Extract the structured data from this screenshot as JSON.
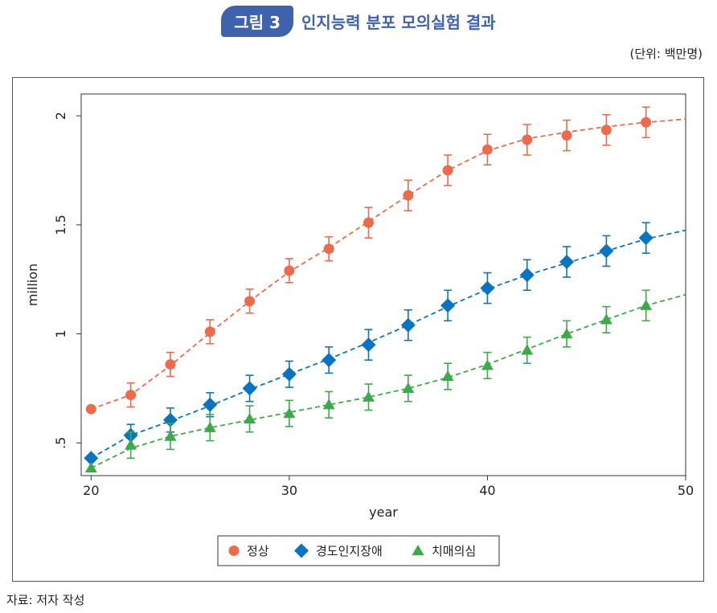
{
  "header": {
    "badge": "그림 3",
    "title": "인지능력 분포 모의실험 결과",
    "unit": "(단위: 백만명)"
  },
  "source": "자료: 저자 작성",
  "colors": {
    "normal": "#ee6a4c",
    "mci": "#0a74c0",
    "dementia": "#3daa4a",
    "badge": "#3f62ad"
  },
  "chart_data": {
    "type": "line",
    "title": "",
    "xlabel": "year",
    "ylabel": "million",
    "xlim": [
      19.5,
      50
    ],
    "ylim": [
      0.35,
      2.1
    ],
    "xticks": [
      20,
      30,
      40,
      50
    ],
    "xtick_labels": [
      "20",
      "30",
      "40",
      "50"
    ],
    "yticks": [
      0.5,
      1,
      1.5,
      2
    ],
    "ytick_labels": [
      ".5",
      "1",
      "1.5",
      "2"
    ],
    "legend_position": "bottom",
    "series": [
      {
        "name": "정상",
        "marker": "circle",
        "color": "#ee6a4c",
        "x": [
          20,
          22,
          24,
          26,
          28,
          30,
          32,
          34,
          36,
          38,
          40,
          42,
          44,
          46,
          48
        ],
        "y": [
          0.655,
          0.72,
          0.86,
          1.01,
          1.15,
          1.29,
          1.39,
          1.51,
          1.635,
          1.75,
          1.845,
          1.89,
          1.91,
          1.935,
          1.97
        ],
        "err": [
          0,
          0.055,
          0.055,
          0.055,
          0.055,
          0.055,
          0.055,
          0.07,
          0.07,
          0.07,
          0.07,
          0.07,
          0.07,
          0.07,
          0.07
        ],
        "trend_x": [
          20,
          22,
          24,
          26,
          28,
          30,
          32,
          34,
          36,
          38,
          40,
          42,
          44,
          46,
          48,
          50
        ],
        "trend_y": [
          0.655,
          0.72,
          0.855,
          1.005,
          1.15,
          1.285,
          1.395,
          1.515,
          1.635,
          1.75,
          1.84,
          1.895,
          1.925,
          1.95,
          1.97,
          1.985
        ]
      },
      {
        "name": "경도인지장애",
        "marker": "diamond",
        "color": "#0a74c0",
        "x": [
          20,
          22,
          24,
          26,
          28,
          30,
          32,
          34,
          36,
          38,
          40,
          42,
          44,
          46,
          48
        ],
        "y": [
          0.43,
          0.535,
          0.605,
          0.675,
          0.75,
          0.815,
          0.88,
          0.95,
          1.04,
          1.13,
          1.21,
          1.27,
          1.33,
          1.38,
          1.44
        ],
        "err": [
          0,
          0.05,
          0.055,
          0.055,
          0.06,
          0.06,
          0.06,
          0.07,
          0.07,
          0.07,
          0.07,
          0.07,
          0.07,
          0.07,
          0.07
        ],
        "trend_x": [
          20,
          22,
          24,
          26,
          28,
          30,
          32,
          34,
          36,
          38,
          40,
          42,
          44,
          46,
          48,
          50
        ],
        "trend_y": [
          0.43,
          0.535,
          0.6,
          0.67,
          0.745,
          0.815,
          0.885,
          0.96,
          1.04,
          1.125,
          1.205,
          1.27,
          1.325,
          1.38,
          1.435,
          1.475
        ]
      },
      {
        "name": "치매의심",
        "marker": "triangle",
        "color": "#3daa4a",
        "x": [
          20,
          22,
          24,
          26,
          28,
          30,
          32,
          34,
          36,
          38,
          40,
          42,
          44,
          46,
          48
        ],
        "y": [
          0.385,
          0.49,
          0.53,
          0.57,
          0.61,
          0.635,
          0.675,
          0.71,
          0.75,
          0.805,
          0.855,
          0.925,
          1.0,
          1.065,
          1.13
        ],
        "err": [
          0,
          0.06,
          0.06,
          0.06,
          0.06,
          0.06,
          0.06,
          0.06,
          0.06,
          0.06,
          0.06,
          0.06,
          0.06,
          0.06,
          0.07
        ],
        "trend_x": [
          20,
          22,
          24,
          26,
          28,
          30,
          32,
          34,
          36,
          38,
          40,
          42,
          44,
          46,
          48,
          50
        ],
        "trend_y": [
          0.385,
          0.475,
          0.53,
          0.57,
          0.605,
          0.64,
          0.675,
          0.71,
          0.75,
          0.8,
          0.86,
          0.93,
          1.0,
          1.065,
          1.13,
          1.18
        ]
      }
    ]
  }
}
